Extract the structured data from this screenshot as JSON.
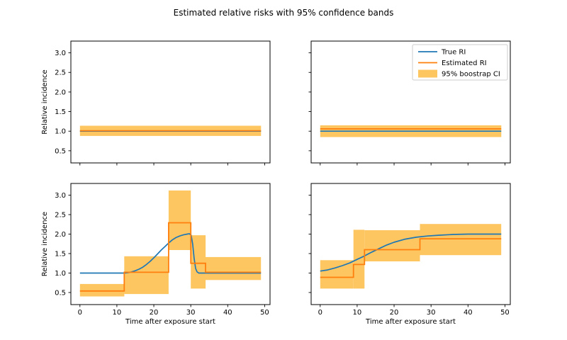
{
  "figure": {
    "title": "Estimated relative risks with 95% confidence bands"
  },
  "style": {
    "true_ri_color": "#1f77b4",
    "estimated_ri_color": "#ff7f0e",
    "ci_band_color": "#fdc661",
    "spine_color": "#000000",
    "text_color": "#000000",
    "legend_border_color": "#cccccc",
    "legend_bg": "#ffffff",
    "background": "#ffffff"
  },
  "chart_data": {
    "type": "line",
    "title": "Estimated relative risks with 95% confidence bands",
    "xlabel": "Time after exposure start",
    "ylabel": "Relative incidence",
    "grid": false,
    "legend_position": "upper right of top-right panel",
    "xlim": [
      -2.45,
      51.45
    ],
    "ylim": [
      0.19,
      3.3
    ],
    "xticks": [
      0,
      10,
      20,
      30,
      40,
      50
    ],
    "xtick_labels": [
      "0",
      "10",
      "20",
      "30",
      "40",
      "50"
    ],
    "yticks": [
      0.5,
      1.0,
      1.5,
      2.0,
      2.5,
      3.0
    ],
    "ytick_labels": [
      "0.5",
      "1.0",
      "1.5",
      "2.0",
      "2.5",
      "3.0"
    ],
    "legend": {
      "entries": [
        {
          "label": "True RI",
          "type": "line",
          "color_key": "true_ri_color"
        },
        {
          "label": "Estimated RI",
          "type": "line",
          "color_key": "estimated_ri_color"
        },
        {
          "label": "95% boostrap CI",
          "type": "patch",
          "color_key": "ci_band_color"
        }
      ]
    },
    "panels": [
      {
        "name": "top-left",
        "show_x_ticklabels": false,
        "show_y_ticklabels": true,
        "show_xlabel": false,
        "show_ylabel": true,
        "show_legend": false,
        "true_ri": {
          "x": [
            0,
            49
          ],
          "y": [
            1.0,
            1.0
          ]
        },
        "estimated_ri_steps": [
          [
            0,
            49,
            1.01
          ]
        ],
        "ci_bands": [
          [
            0,
            49,
            0.88,
            1.14
          ]
        ]
      },
      {
        "name": "top-right",
        "show_x_ticklabels": false,
        "show_y_ticklabels": false,
        "show_xlabel": false,
        "show_ylabel": false,
        "show_legend": true,
        "true_ri": {
          "x": [
            0,
            49
          ],
          "y": [
            1.0,
            1.0
          ]
        },
        "estimated_ri_steps": [
          [
            0,
            49,
            1.06
          ]
        ],
        "ci_bands": [
          [
            0,
            49,
            0.85,
            1.15
          ]
        ]
      },
      {
        "name": "bottom-left",
        "show_x_ticklabels": true,
        "show_y_ticklabels": true,
        "show_xlabel": true,
        "show_ylabel": true,
        "show_legend": false,
        "true_ri": {
          "x": [
            0,
            4,
            8,
            12,
            13,
            14,
            15,
            16,
            17,
            18,
            19,
            20,
            21,
            22,
            23,
            24,
            25,
            26,
            27,
            28,
            29,
            29.6,
            30.1,
            30.5,
            30.9,
            31.3,
            31.7,
            32.2,
            33,
            35,
            38,
            42,
            46,
            49
          ],
          "y": [
            1.0,
            1.0,
            1.0,
            1.0,
            1.01,
            1.03,
            1.06,
            1.1,
            1.15,
            1.22,
            1.3,
            1.39,
            1.49,
            1.59,
            1.68,
            1.77,
            1.85,
            1.91,
            1.95,
            1.98,
            2.0,
            2.01,
            1.97,
            1.75,
            1.38,
            1.12,
            1.03,
            1.0,
            1.0,
            1.0,
            1.0,
            1.0,
            1.0,
            1.0
          ]
        },
        "estimated_ri_steps": [
          [
            0,
            12,
            0.54
          ],
          [
            12,
            24,
            1.02
          ],
          [
            24,
            30,
            2.29
          ],
          [
            30,
            34,
            1.25
          ],
          [
            34,
            49,
            1.02
          ]
        ],
        "ci_bands": [
          [
            0,
            12,
            0.4,
            0.72
          ],
          [
            12,
            24,
            0.46,
            1.43
          ],
          [
            24,
            30,
            1.59,
            3.12
          ],
          [
            30,
            34,
            0.6,
            1.97
          ],
          [
            34,
            49,
            0.82,
            1.41
          ]
        ]
      },
      {
        "name": "bottom-right",
        "show_x_ticklabels": true,
        "show_y_ticklabels": false,
        "show_xlabel": true,
        "show_ylabel": false,
        "show_legend": false,
        "true_ri": {
          "x": [
            0,
            2,
            4,
            6,
            8,
            10,
            12,
            14,
            16,
            18,
            20,
            23,
            26,
            29,
            32,
            36,
            40,
            45,
            49
          ],
          "y": [
            1.05,
            1.08,
            1.13,
            1.19,
            1.26,
            1.35,
            1.44,
            1.54,
            1.63,
            1.72,
            1.79,
            1.87,
            1.92,
            1.95,
            1.97,
            1.99,
            2.0,
            2.0,
            2.0
          ]
        },
        "estimated_ri_steps": [
          [
            0,
            9,
            0.89
          ],
          [
            9,
            12,
            1.22
          ],
          [
            12,
            27,
            1.6
          ],
          [
            27,
            49,
            1.88
          ]
        ],
        "ci_bands": [
          [
            0,
            9,
            0.6,
            1.33
          ],
          [
            9,
            12,
            0.6,
            2.11
          ],
          [
            12,
            27,
            1.3,
            2.1
          ],
          [
            27,
            49,
            1.46,
            2.26
          ]
        ]
      }
    ]
  }
}
